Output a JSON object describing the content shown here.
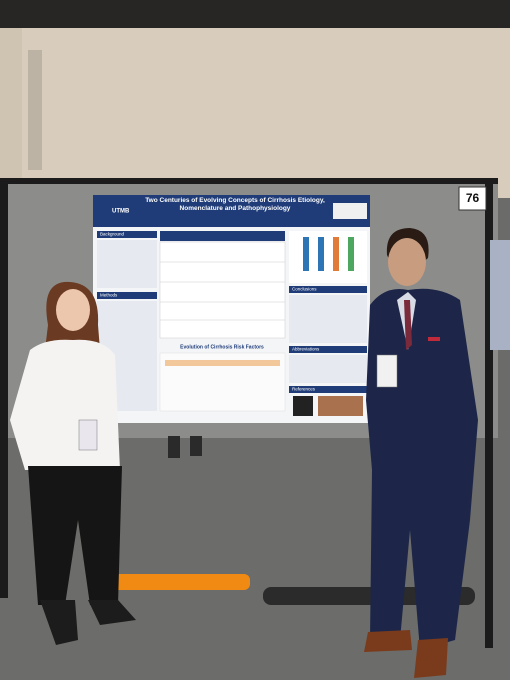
{
  "booth_number": "76",
  "poster": {
    "logo": "UTMB",
    "title": "Two Centuries of Evolving Concepts of Cirrhosis Etiology, Nomenclature and Pathophysiology",
    "sections": [
      "Background",
      "Methods",
      "Conclusions",
      "Abbreviations",
      "References"
    ],
    "figure_title": "Evolution of Cirrhosis Risk Factors"
  }
}
